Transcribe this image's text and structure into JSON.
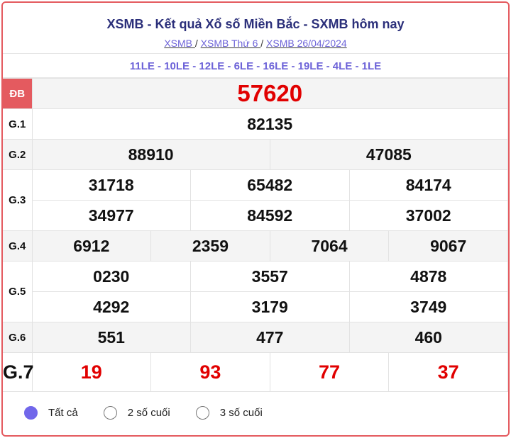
{
  "header": {
    "title": "XSMB - Kết quả Xổ số Miền Bắc - SXMB hôm nay",
    "breadcrumbs": [
      "XSMB ",
      "XSMB Thứ 6 ",
      "XSMB 26/04/2024"
    ],
    "separator": "/"
  },
  "codes": "11LE - 10LE - 12LE - 6LE - 16LE - 19LE - 4LE - 1LE",
  "prizes": {
    "db": {
      "label": "ĐB",
      "values": [
        "57620"
      ]
    },
    "g1": {
      "label": "G.1",
      "values": [
        "82135"
      ]
    },
    "g2": {
      "label": "G.2",
      "values": [
        "88910",
        "47085"
      ]
    },
    "g3": {
      "label": "G.3",
      "values": [
        "31718",
        "65482",
        "84174",
        "34977",
        "84592",
        "37002"
      ]
    },
    "g4": {
      "label": "G.4",
      "values": [
        "6912",
        "2359",
        "7064",
        "9067"
      ]
    },
    "g5": {
      "label": "G.5",
      "values": [
        "0230",
        "3557",
        "4878",
        "4292",
        "3179",
        "3749"
      ]
    },
    "g6": {
      "label": "G.6",
      "values": [
        "551",
        "477",
        "460"
      ]
    },
    "g7": {
      "label": "G.7",
      "values": [
        "19",
        "93",
        "77",
        "37"
      ]
    }
  },
  "filters": {
    "options": [
      "Tất cả",
      "2 số cuối",
      "3 số cuối"
    ],
    "selected": "Tất cả"
  },
  "colors": {
    "accent": "#7167ea",
    "prize_red": "#e10000",
    "border": "#e45a5f",
    "title": "#2b2f7a"
  }
}
